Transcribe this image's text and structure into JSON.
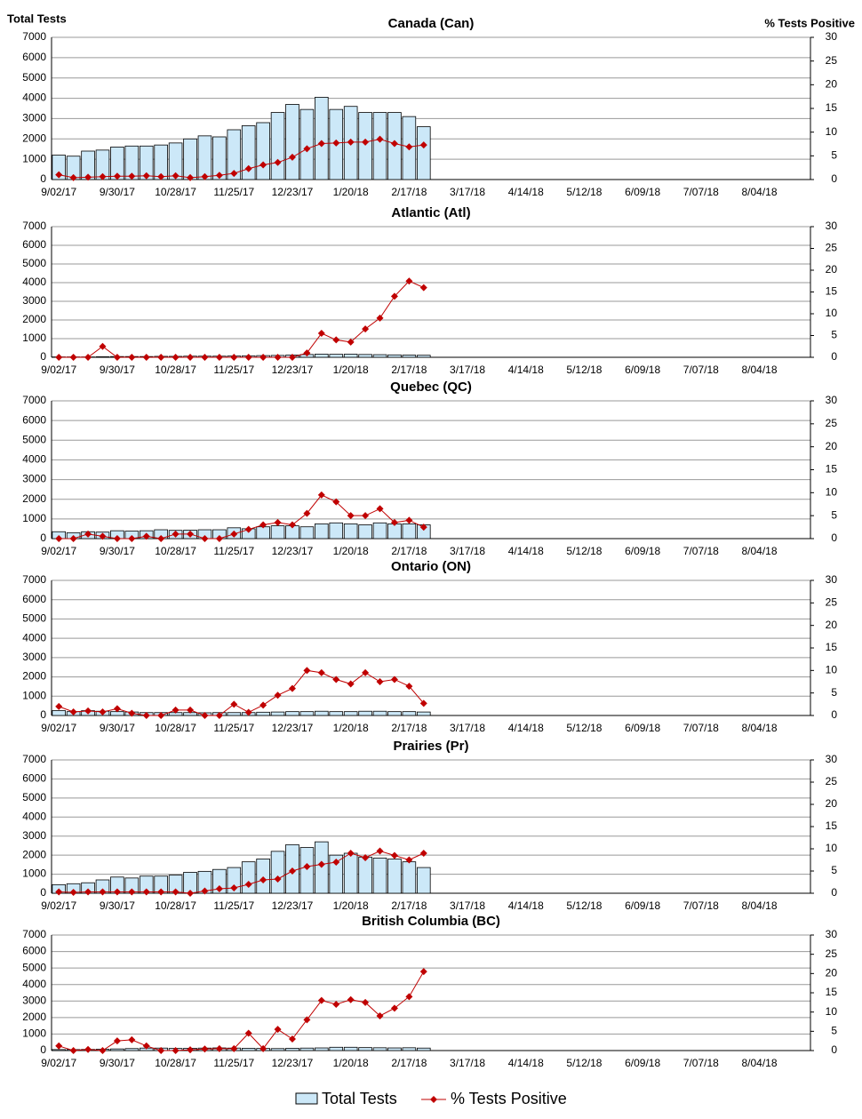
{
  "chart_data": [
    {
      "type": "combo",
      "title": "Canada (Can)",
      "y_label": "Total Tests",
      "y2_label": "% Tests Positive",
      "categories": [
        "9/02/17",
        null,
        null,
        null,
        "9/30/17",
        null,
        null,
        null,
        "10/28/17",
        null,
        null,
        null,
        "11/25/17",
        null,
        null,
        null,
        "12/23/17",
        null,
        null,
        null,
        "1/20/18",
        null,
        null,
        null,
        "2/17/18",
        null,
        null,
        null,
        "3/17/18",
        null,
        null,
        null,
        "4/14/18",
        null,
        null,
        null,
        "5/12/18",
        null,
        null,
        null,
        "6/09/18",
        null,
        null,
        null,
        "7/07/18",
        null,
        null,
        null,
        "8/04/18",
        null,
        null,
        null
      ],
      "ylim": [
        0,
        7000
      ],
      "yticks": [
        0,
        1000,
        2000,
        3000,
        4000,
        5000,
        6000,
        7000
      ],
      "y2lim": [
        0,
        30
      ],
      "y2ticks": [
        0,
        5,
        10,
        15,
        20,
        25,
        30
      ],
      "series": [
        {
          "name": "Total Tests",
          "color": "#cce8f8",
          "values": [
            1200,
            1150,
            1400,
            1450,
            1600,
            1650,
            1650,
            1700,
            1800,
            2000,
            2150,
            2100,
            2450,
            2650,
            2800,
            3300,
            3700,
            3450,
            4050,
            3450,
            3600,
            3300,
            3300,
            3300,
            3100,
            2600,
            null,
            null,
            null,
            null,
            null,
            null,
            null,
            null,
            null,
            null,
            null,
            null,
            null,
            null,
            null,
            null,
            null,
            null,
            null,
            null,
            null,
            null,
            null,
            null,
            null,
            null
          ]
        },
        {
          "name": "% Tests Positive",
          "color": "#c00000",
          "axis": "y2",
          "values": [
            1,
            0.4,
            0.5,
            0.6,
            0.7,
            0.7,
            0.8,
            0.6,
            0.8,
            0.4,
            0.6,
            0.9,
            1.3,
            2.3,
            3.1,
            3.6,
            4.7,
            6.5,
            7.6,
            7.7,
            7.9,
            7.9,
            8.5,
            7.6,
            6.9,
            7.3,
            null,
            null,
            null,
            null,
            null,
            null,
            null,
            null,
            null,
            null,
            null,
            null,
            null,
            null,
            null,
            null,
            null,
            null,
            null,
            null,
            null,
            null,
            null,
            null,
            null,
            null
          ]
        }
      ]
    },
    {
      "type": "combo",
      "title": "Atlantic (Atl)",
      "categories": [
        "9/02/17",
        null,
        null,
        null,
        "9/30/17",
        null,
        null,
        null,
        "10/28/17",
        null,
        null,
        null,
        "11/25/17",
        null,
        null,
        null,
        "12/23/17",
        null,
        null,
        null,
        "1/20/18",
        null,
        null,
        null,
        "2/17/18",
        null,
        null,
        null,
        "3/17/18",
        null,
        null,
        null,
        "4/14/18",
        null,
        null,
        null,
        "5/12/18",
        null,
        null,
        null,
        "6/09/18",
        null,
        null,
        null,
        "7/07/18",
        null,
        null,
        null,
        "8/04/18",
        null,
        null,
        null
      ],
      "ylim": [
        0,
        7000
      ],
      "yticks": [
        0,
        1000,
        2000,
        3000,
        4000,
        5000,
        6000,
        7000
      ],
      "y2lim": [
        0,
        30
      ],
      "y2ticks": [
        0,
        5,
        10,
        15,
        20,
        25,
        30
      ],
      "series": [
        {
          "color": "#cce8f8",
          "values": [
            20,
            20,
            20,
            30,
            40,
            40,
            40,
            50,
            50,
            60,
            60,
            60,
            70,
            80,
            90,
            100,
            120,
            150,
            170,
            160,
            170,
            150,
            140,
            130,
            120,
            110,
            null,
            null,
            null,
            null,
            null,
            null,
            null,
            null,
            null,
            null,
            null,
            null,
            null,
            null,
            null,
            null,
            null,
            null,
            null,
            null,
            null,
            null,
            null,
            null,
            null,
            null
          ]
        },
        {
          "color": "#c00000",
          "axis": "y2",
          "values": [
            0,
            0,
            0,
            2.5,
            0,
            0,
            0,
            0,
            0,
            0,
            0,
            0,
            0,
            0,
            0,
            0,
            0,
            1,
            5.5,
            4,
            3.5,
            6.5,
            9,
            14,
            17.5,
            16,
            null,
            null,
            null,
            null,
            null,
            null,
            null,
            null,
            null,
            null,
            null,
            null,
            null,
            null,
            null,
            null,
            null,
            null,
            null,
            null,
            null,
            null,
            null,
            null,
            null,
            null
          ]
        }
      ]
    },
    {
      "type": "combo",
      "title": "Quebec (QC)",
      "categories": [
        "9/02/17",
        null,
        null,
        null,
        "9/30/17",
        null,
        null,
        null,
        "10/28/17",
        null,
        null,
        null,
        "11/25/17",
        null,
        null,
        null,
        "12/23/17",
        null,
        null,
        null,
        "1/20/18",
        null,
        null,
        null,
        "2/17/18",
        null,
        null,
        null,
        "3/17/18",
        null,
        null,
        null,
        "4/14/18",
        null,
        null,
        null,
        "5/12/18",
        null,
        null,
        null,
        "6/09/18",
        null,
        null,
        null,
        "7/07/18",
        null,
        null,
        null,
        "8/04/18",
        null,
        null,
        null
      ],
      "ylim": [
        0,
        7000
      ],
      "yticks": [
        0,
        1000,
        2000,
        3000,
        4000,
        5000,
        6000,
        7000
      ],
      "y2lim": [
        0,
        30
      ],
      "y2ticks": [
        0,
        5,
        10,
        15,
        20,
        25,
        30
      ],
      "series": [
        {
          "color": "#cce8f8",
          "values": [
            350,
            300,
            350,
            330,
            400,
            380,
            400,
            450,
            420,
            430,
            450,
            450,
            550,
            500,
            600,
            650,
            650,
            600,
            750,
            800,
            750,
            700,
            800,
            750,
            750,
            700,
            null,
            null,
            null,
            null,
            null,
            null,
            null,
            null,
            null,
            null,
            null,
            null,
            null,
            null,
            null,
            null,
            null,
            null,
            null,
            null,
            null,
            null,
            null,
            null,
            null,
            null
          ]
        },
        {
          "color": "#c00000",
          "axis": "y2",
          "values": [
            0,
            0,
            1,
            0.5,
            0,
            0,
            0.5,
            0,
            1,
            1,
            0,
            0,
            1,
            2,
            3,
            3.5,
            3,
            5.5,
            9.5,
            8,
            5,
            5,
            6.5,
            3.5,
            4,
            2.5,
            null,
            null,
            null,
            null,
            null,
            null,
            null,
            null,
            null,
            null,
            null,
            null,
            null,
            null,
            null,
            null,
            null,
            null,
            null,
            null,
            null,
            null,
            null,
            null,
            null,
            null
          ]
        }
      ]
    },
    {
      "type": "combo",
      "title": "Ontario (ON)",
      "categories": [
        "9/02/17",
        null,
        null,
        null,
        "9/30/17",
        null,
        null,
        null,
        "10/28/17",
        null,
        null,
        null,
        "11/25/17",
        null,
        null,
        null,
        "12/23/17",
        null,
        null,
        null,
        "1/20/18",
        null,
        null,
        null,
        "2/17/18",
        null,
        null,
        null,
        "3/17/18",
        null,
        null,
        null,
        "4/14/18",
        null,
        null,
        null,
        "5/12/18",
        null,
        null,
        null,
        "6/09/18",
        null,
        null,
        null,
        "7/07/18",
        null,
        null,
        null,
        "8/04/18",
        null,
        null,
        null
      ],
      "ylim": [
        0,
        7000
      ],
      "yticks": [
        0,
        1000,
        2000,
        3000,
        4000,
        5000,
        6000,
        7000
      ],
      "y2lim": [
        0,
        30
      ],
      "y2ticks": [
        0,
        5,
        10,
        15,
        20,
        25,
        30
      ],
      "series": [
        {
          "color": "#cce8f8",
          "values": [
            250,
            200,
            250,
            220,
            200,
            180,
            150,
            150,
            150,
            150,
            140,
            150,
            150,
            150,
            170,
            180,
            200,
            200,
            220,
            200,
            200,
            220,
            220,
            200,
            200,
            180,
            null,
            null,
            null,
            null,
            null,
            null,
            null,
            null,
            null,
            null,
            null,
            null,
            null,
            null,
            null,
            null,
            null,
            null,
            null,
            null,
            null,
            null,
            null,
            null,
            null,
            null
          ]
        },
        {
          "color": "#c00000",
          "axis": "y2",
          "values": [
            2,
            0.8,
            1,
            0.8,
            1.5,
            0.5,
            0,
            0,
            1.2,
            1.2,
            0,
            0,
            2.5,
            0.7,
            2.3,
            4.5,
            6,
            10,
            9.5,
            8,
            7,
            9.5,
            7.5,
            8,
            6.5,
            2.7,
            null,
            null,
            null,
            null,
            null,
            null,
            null,
            null,
            null,
            null,
            null,
            null,
            null,
            null,
            null,
            null,
            null,
            null,
            null,
            null,
            null,
            null,
            null,
            null,
            null,
            null
          ]
        }
      ]
    },
    {
      "type": "combo",
      "title": "Prairies (Pr)",
      "categories": [
        "9/02/17",
        null,
        null,
        null,
        "9/30/17",
        null,
        null,
        null,
        "10/28/17",
        null,
        null,
        null,
        "11/25/17",
        null,
        null,
        null,
        "12/23/17",
        null,
        null,
        null,
        "1/20/18",
        null,
        null,
        null,
        "2/17/18",
        null,
        null,
        null,
        "3/17/18",
        null,
        null,
        null,
        "4/14/18",
        null,
        null,
        null,
        "5/12/18",
        null,
        null,
        null,
        "6/09/18",
        null,
        null,
        null,
        "7/07/18",
        null,
        null,
        null,
        "8/04/18",
        null,
        null,
        null
      ],
      "ylim": [
        0,
        7000
      ],
      "yticks": [
        0,
        1000,
        2000,
        3000,
        4000,
        5000,
        6000,
        7000
      ],
      "y2lim": [
        0,
        30
      ],
      "y2ticks": [
        0,
        5,
        10,
        15,
        20,
        25,
        30
      ],
      "series": [
        {
          "color": "#cce8f8",
          "values": [
            450,
            500,
            550,
            700,
            850,
            800,
            900,
            900,
            950,
            1100,
            1150,
            1250,
            1350,
            1650,
            1800,
            2200,
            2550,
            2400,
            2700,
            2000,
            2100,
            1900,
            1850,
            1800,
            1650,
            1350,
            null,
            null,
            null,
            null,
            null,
            null,
            null,
            null,
            null,
            null,
            null,
            null,
            null,
            null,
            null,
            null,
            null,
            null,
            null,
            null,
            null,
            null,
            null,
            null,
            null,
            null
          ]
        },
        {
          "color": "#c00000",
          "axis": "y2",
          "values": [
            0.3,
            0.2,
            0.3,
            0.3,
            0.3,
            0.3,
            0.3,
            0.3,
            0.3,
            0,
            0.5,
            1,
            1.2,
            2,
            3,
            3.2,
            5,
            6,
            6.5,
            7,
            9,
            8,
            9.5,
            8.5,
            7.5,
            9,
            null,
            null,
            null,
            null,
            null,
            null,
            null,
            null,
            null,
            null,
            null,
            null,
            null,
            null,
            null,
            null,
            null,
            null,
            null,
            null,
            null,
            null,
            null,
            null,
            null,
            null
          ]
        }
      ]
    },
    {
      "type": "combo",
      "title": "British Columbia (BC)",
      "categories": [
        "9/02/17",
        null,
        null,
        null,
        "9/30/17",
        null,
        null,
        null,
        "10/28/17",
        null,
        null,
        null,
        "11/25/17",
        null,
        null,
        null,
        "12/23/17",
        null,
        null,
        null,
        "1/20/18",
        null,
        null,
        null,
        "2/17/18",
        null,
        null,
        null,
        "3/17/18",
        null,
        null,
        null,
        "4/14/18",
        null,
        null,
        null,
        "5/12/18",
        null,
        null,
        null,
        "6/09/18",
        null,
        null,
        null,
        "7/07/18",
        null,
        null,
        null,
        "8/04/18",
        null,
        null,
        null
      ],
      "ylim": [
        0,
        7000
      ],
      "yticks": [
        0,
        1000,
        2000,
        3000,
        4000,
        5000,
        6000,
        7000
      ],
      "y2lim": [
        0,
        30
      ],
      "y2ticks": [
        0,
        5,
        10,
        15,
        20,
        25,
        30
      ],
      "series": [
        {
          "color": "#cce8f8",
          "values": [
            60,
            60,
            70,
            80,
            100,
            120,
            150,
            150,
            130,
            140,
            150,
            160,
            150,
            140,
            130,
            120,
            140,
            150,
            160,
            200,
            200,
            180,
            170,
            160,
            170,
            150,
            null,
            null,
            null,
            null,
            null,
            null,
            null,
            null,
            null,
            null,
            null,
            null,
            null,
            null,
            null,
            null,
            null,
            null,
            null,
            null,
            null,
            null,
            null,
            null,
            null,
            null
          ]
        },
        {
          "color": "#c00000",
          "axis": "y2",
          "values": [
            1.2,
            0,
            0.3,
            0,
            2.5,
            2.8,
            1.2,
            0,
            0,
            0.2,
            0.4,
            0.5,
            0.5,
            4.5,
            0.5,
            5.5,
            3,
            8,
            13,
            12,
            13.2,
            12.5,
            9,
            11,
            14,
            20.5,
            null,
            null,
            null,
            null,
            null,
            null,
            null,
            null,
            null,
            null,
            null,
            null,
            null,
            null,
            null,
            null,
            null,
            null,
            null,
            null,
            null,
            null,
            null,
            null,
            null,
            null
          ]
        }
      ]
    }
  ]
}
